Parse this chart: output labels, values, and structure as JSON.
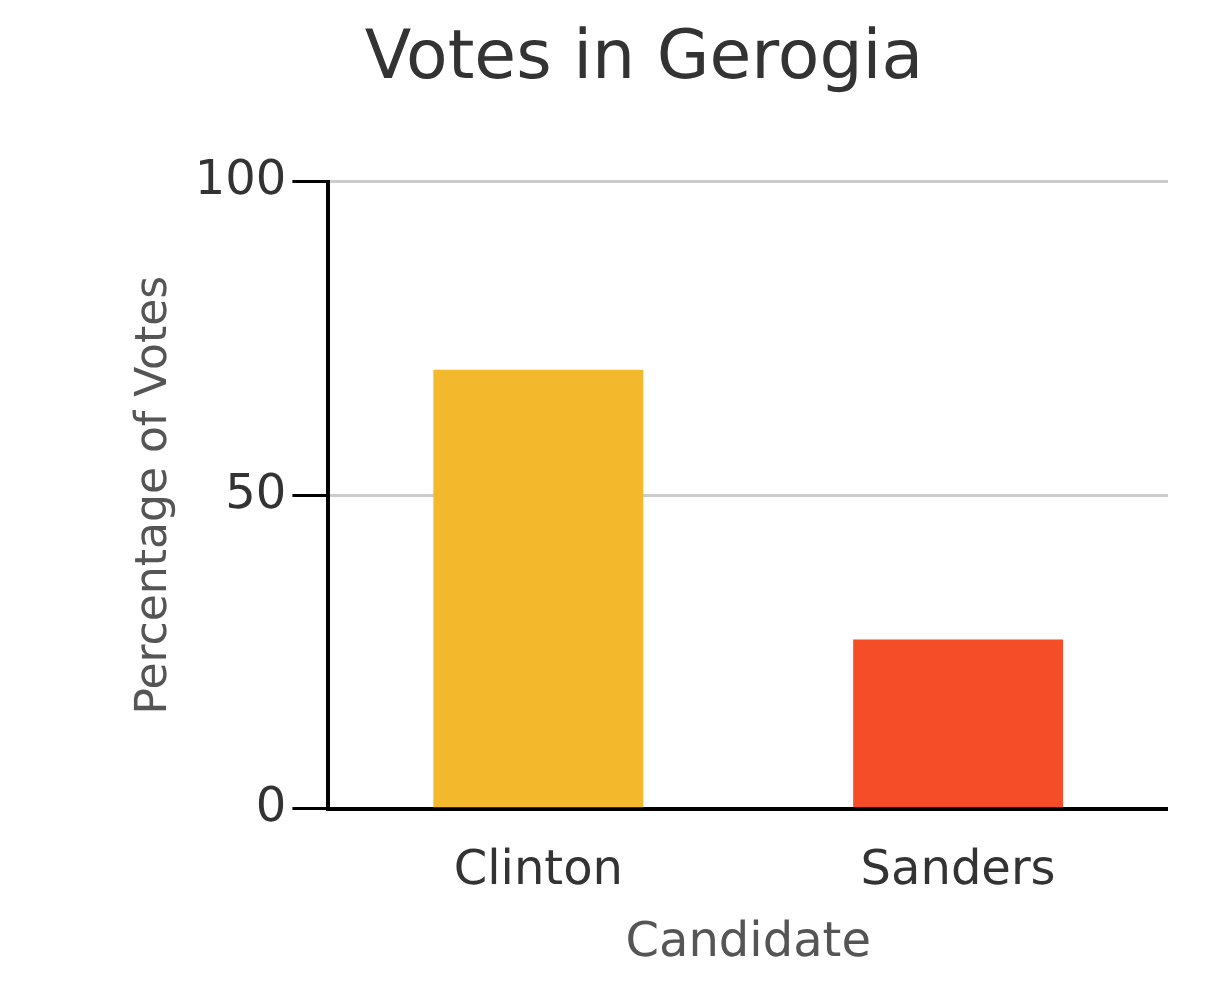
{
  "chart_data": {
    "type": "bar",
    "title": "Votes in Gerogia",
    "xlabel": "Candidate",
    "ylabel": "Percentage of Votes",
    "categories": [
      "Clinton",
      "Sanders"
    ],
    "colors": [
      "#f4b82c",
      "#f54d27"
    ],
    "values": [
      70,
      27
    ],
    "ylim": [
      0,
      100
    ],
    "yticks": [
      0,
      50,
      100
    ],
    "grid": "y",
    "legend": false
  }
}
